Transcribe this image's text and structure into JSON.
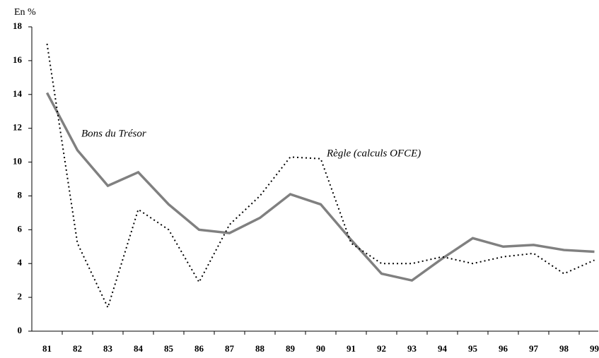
{
  "chart_data": {
    "type": "line",
    "y_label": "En %",
    "categories": [
      "81",
      "82",
      "83",
      "84",
      "85",
      "86",
      "87",
      "88",
      "89",
      "90",
      "91",
      "92",
      "93",
      "94",
      "95",
      "96",
      "97",
      "98",
      "99"
    ],
    "series": [
      {
        "name": "Bons du Trésor",
        "color": "#808080",
        "style": "solid",
        "values": [
          14.1,
          10.7,
          8.6,
          9.4,
          7.5,
          6.0,
          5.8,
          6.7,
          8.1,
          7.5,
          5.4,
          3.4,
          3.0,
          4.3,
          5.5,
          5.0,
          5.1,
          4.8,
          4.7
        ]
      },
      {
        "name": "Règle (calculs OFCE)",
        "color": "#000000",
        "style": "dotted",
        "values": [
          17.0,
          5.2,
          1.4,
          7.2,
          6.0,
          2.9,
          6.3,
          8.0,
          10.3,
          10.2,
          5.2,
          4.0,
          4.0,
          4.4,
          4.0,
          4.4,
          4.6,
          3.4,
          4.2
        ]
      }
    ],
    "ylim": [
      0,
      18
    ],
    "yticks": [
      0,
      2,
      4,
      6,
      8,
      10,
      12,
      14,
      16,
      18
    ],
    "grid": false
  }
}
